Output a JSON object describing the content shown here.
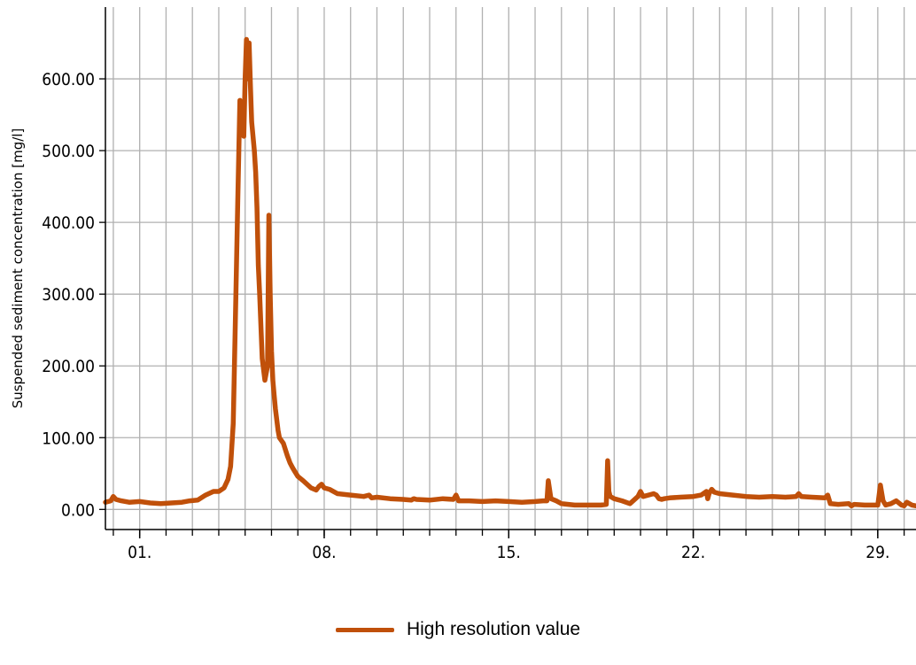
{
  "chart_data": {
    "type": "line",
    "ylabel": "Suspended sediment concentration [mg/l]",
    "xlabel": "",
    "ylim": [
      -28,
      700
    ],
    "xlim": [
      30.7,
      61.45
    ],
    "yticks": [
      0,
      100,
      200,
      300,
      400,
      500,
      600
    ],
    "ytick_labels": [
      "0.00",
      "100.00",
      "200.00",
      "300.00",
      "400.00",
      "500.00",
      "600.00"
    ],
    "xticks": [
      32,
      39,
      46,
      53,
      60
    ],
    "xtick_labels": [
      "01.",
      "08.",
      "15.",
      "22.",
      "29."
    ],
    "grid": true,
    "legend_position": "bottom-center",
    "series": [
      {
        "name": "High resolution value",
        "color": "#c0500a",
        "x": [
          30.7,
          30.9,
          31.0,
          31.1,
          31.3,
          31.6,
          32.0,
          32.4,
          32.8,
          33.2,
          33.6,
          33.9,
          34.2,
          34.5,
          34.8,
          35.0,
          35.2,
          35.35,
          35.45,
          35.55,
          35.65,
          35.72,
          35.8,
          35.88,
          35.95,
          36.0,
          36.05,
          36.1,
          36.15,
          36.2,
          36.25,
          36.3,
          36.35,
          36.4,
          36.45,
          36.5,
          36.55,
          36.65,
          36.75,
          36.85,
          36.9,
          36.95,
          37.0,
          37.05,
          37.1,
          37.15,
          37.2,
          37.25,
          37.3,
          37.45,
          37.6,
          37.7,
          37.8,
          37.9,
          38.0,
          38.2,
          38.5,
          38.7,
          38.8,
          38.9,
          39.0,
          39.2,
          39.5,
          40.0,
          40.5,
          40.7,
          40.8,
          41.0,
          41.5,
          42.0,
          42.3,
          42.4,
          42.5,
          43.0,
          43.5,
          43.9,
          44.0,
          44.1,
          44.5,
          45.0,
          45.5,
          46.0,
          46.5,
          47.0,
          47.3,
          47.45,
          47.5,
          47.6,
          47.8,
          48.0,
          48.5,
          49.0,
          49.5,
          49.7,
          49.75,
          49.8,
          49.85,
          49.9,
          50.0,
          50.3,
          50.6,
          50.9,
          51.0,
          51.1,
          51.3,
          51.5,
          51.6,
          51.7,
          51.8,
          51.9,
          52.1,
          52.5,
          53.0,
          53.3,
          53.5,
          53.55,
          53.6,
          53.7,
          53.8,
          54.0,
          54.5,
          55.0,
          55.5,
          56.0,
          56.5,
          56.9,
          57.0,
          57.1,
          57.5,
          58.0,
          58.1,
          58.2,
          58.5,
          58.9,
          59.0,
          59.1,
          59.5,
          60.0,
          60.1,
          60.2,
          60.3,
          60.5,
          60.7,
          60.9,
          61.0,
          61.1,
          61.3,
          61.45
        ],
        "y": [
          10,
          12,
          18,
          14,
          12,
          10,
          11,
          9,
          8,
          9,
          10,
          12,
          13,
          20,
          25,
          25,
          30,
          42,
          60,
          120,
          300,
          430,
          570,
          540,
          520,
          600,
          655,
          600,
          650,
          590,
          540,
          520,
          500,
          470,
          420,
          340,
          300,
          210,
          180,
          200,
          410,
          300,
          220,
          180,
          160,
          140,
          125,
          110,
          100,
          92,
          75,
          65,
          58,
          52,
          46,
          40,
          30,
          27,
          32,
          35,
          30,
          28,
          22,
          20,
          18,
          20,
          16,
          17,
          15,
          14,
          13,
          15,
          14,
          13,
          15,
          14,
          20,
          12,
          12,
          11,
          12,
          11,
          10,
          11,
          12,
          12,
          40,
          15,
          12,
          8,
          6,
          6,
          6,
          7,
          68,
          25,
          18,
          17,
          15,
          12,
          8,
          18,
          25,
          18,
          20,
          22,
          20,
          15,
          14,
          15,
          16,
          17,
          18,
          20,
          25,
          15,
          22,
          28,
          24,
          22,
          20,
          18,
          17,
          18,
          17,
          18,
          22,
          18,
          17,
          16,
          20,
          8,
          7,
          8,
          5,
          7,
          6,
          6,
          34,
          12,
          6,
          8,
          12,
          6,
          5,
          10,
          6,
          5
        ]
      }
    ]
  },
  "legend": {
    "label": "High resolution value",
    "color": "#c0500a"
  },
  "colors": {
    "grid": "#b0b0b0",
    "axis": "#000000",
    "line": "#c0500a"
  }
}
